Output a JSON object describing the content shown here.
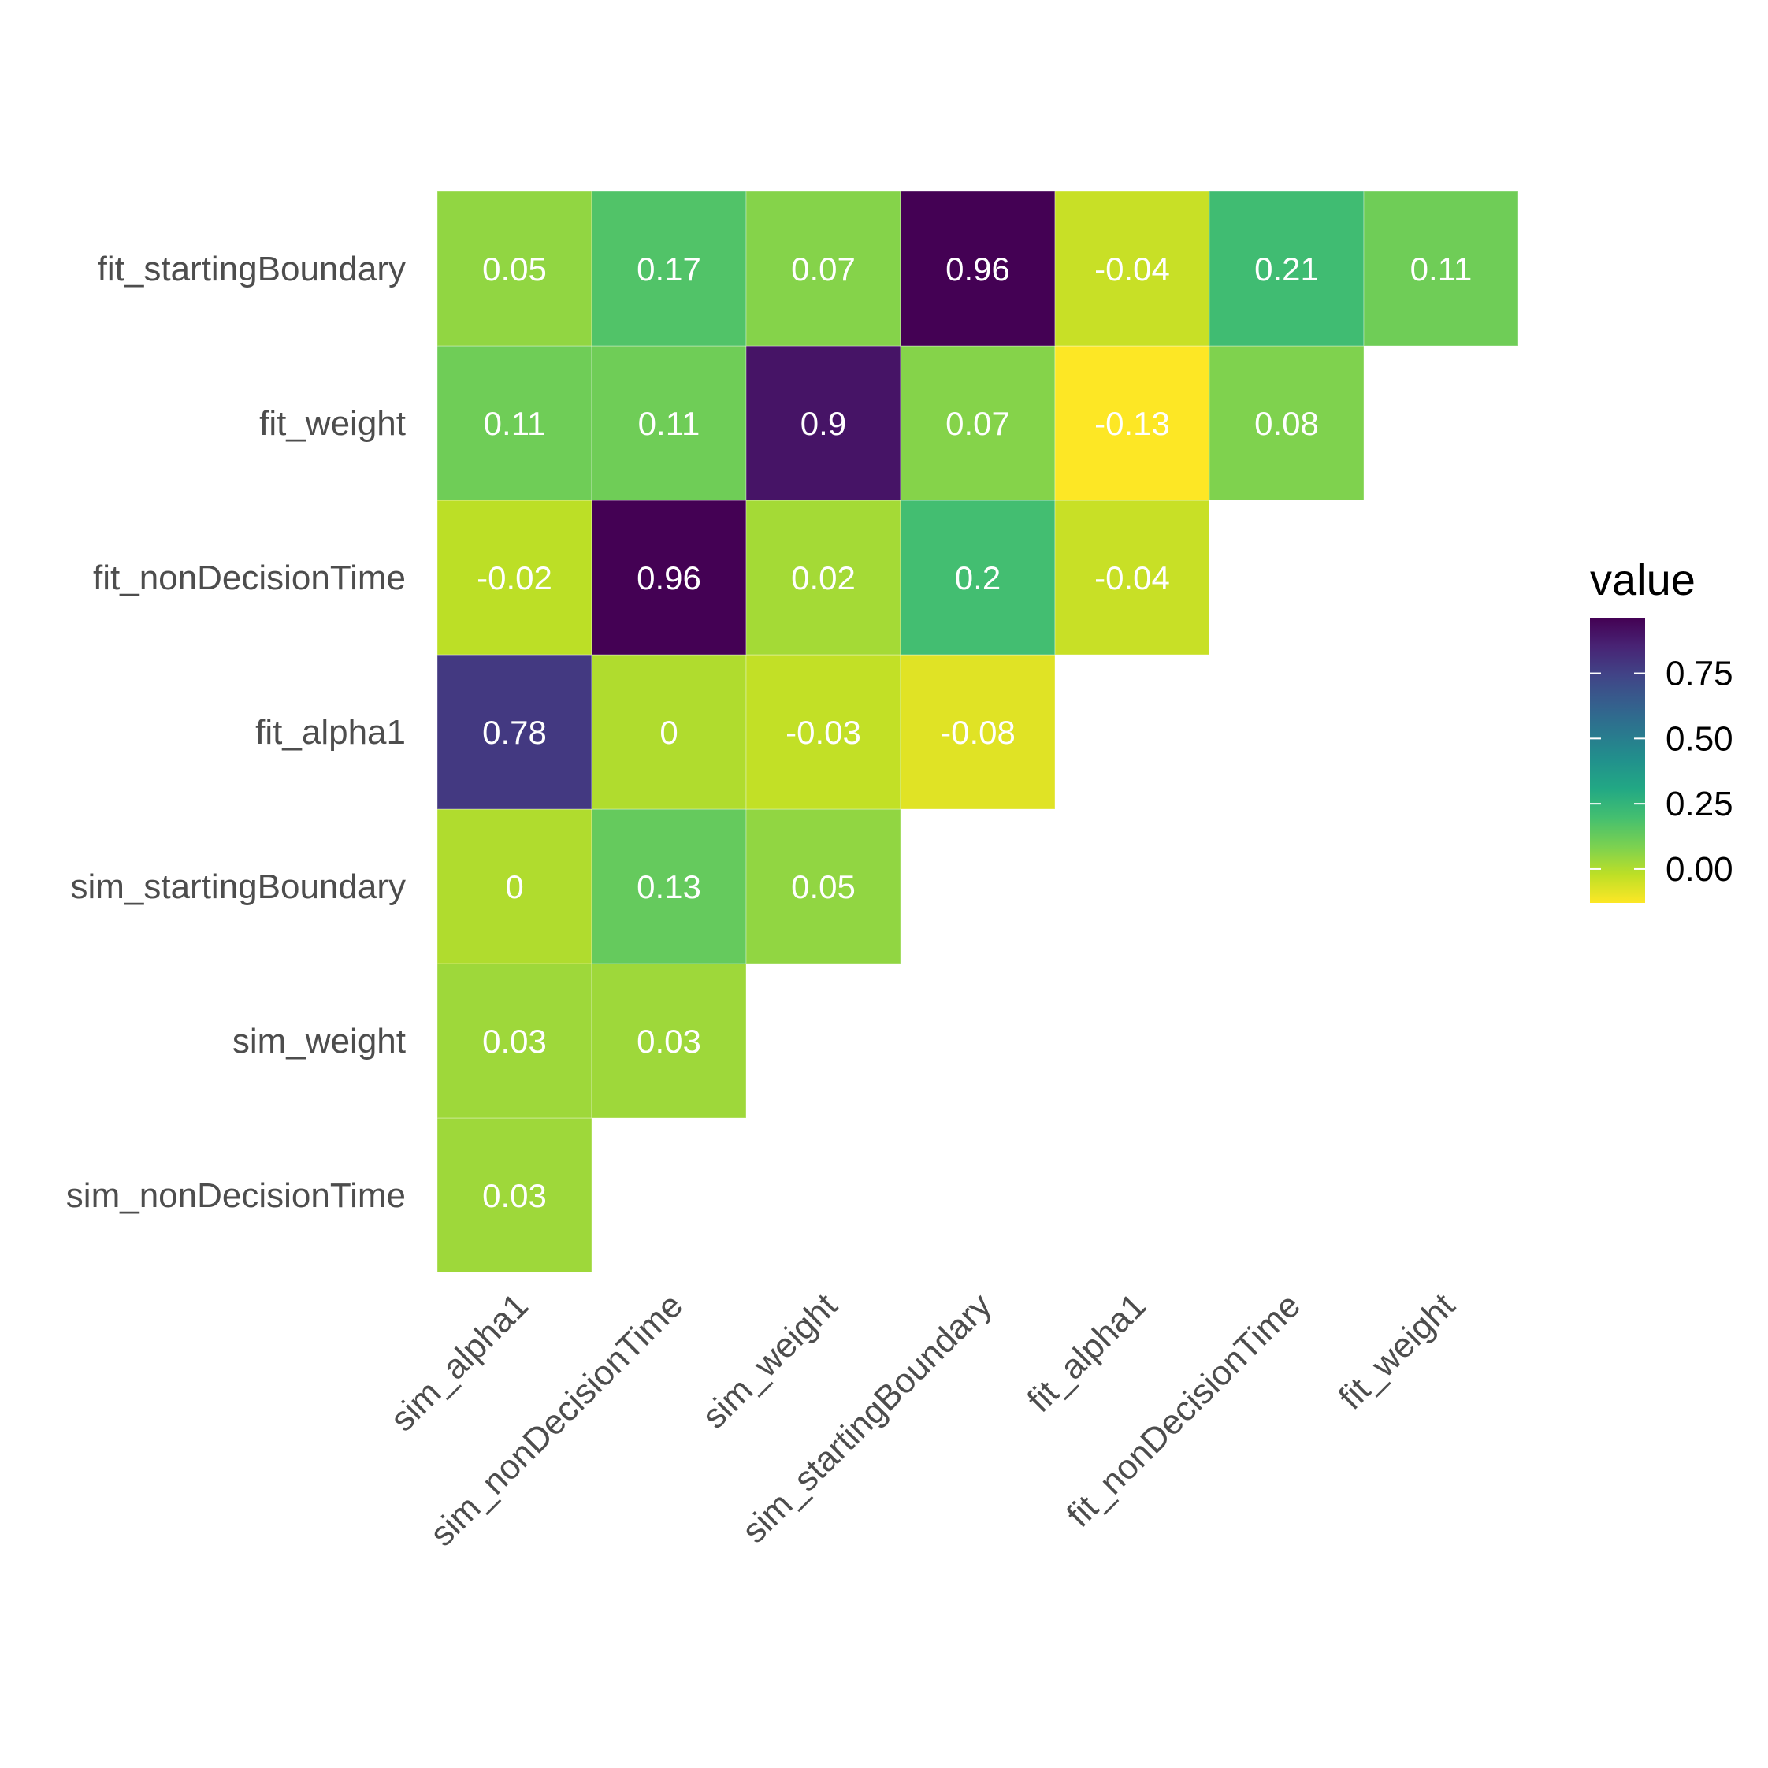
{
  "chart_data": {
    "type": "heatmap",
    "title": "",
    "xlabel": "",
    "ylabel": "",
    "x_categories": [
      "sim_alpha1",
      "sim_nonDecisionTime",
      "sim_weight",
      "sim_startingBoundary",
      "fit_alpha1",
      "fit_nonDecisionTime",
      "fit_weight"
    ],
    "y_categories": [
      "sim_nonDecisionTime",
      "sim_weight",
      "sim_startingBoundary",
      "fit_alpha1",
      "fit_nonDecisionTime",
      "fit_weight",
      "fit_startingBoundary"
    ],
    "cells": [
      {
        "x": "sim_alpha1",
        "y": "sim_nonDecisionTime",
        "value": 0.03,
        "label": "0.03"
      },
      {
        "x": "sim_alpha1",
        "y": "sim_weight",
        "value": 0.03,
        "label": "0.03"
      },
      {
        "x": "sim_nonDecisionTime",
        "y": "sim_weight",
        "value": 0.03,
        "label": "0.03"
      },
      {
        "x": "sim_alpha1",
        "y": "sim_startingBoundary",
        "value": 0,
        "label": "0"
      },
      {
        "x": "sim_nonDecisionTime",
        "y": "sim_startingBoundary",
        "value": 0.13,
        "label": "0.13"
      },
      {
        "x": "sim_weight",
        "y": "sim_startingBoundary",
        "value": 0.05,
        "label": "0.05"
      },
      {
        "x": "sim_alpha1",
        "y": "fit_alpha1",
        "value": 0.78,
        "label": "0.78"
      },
      {
        "x": "sim_nonDecisionTime",
        "y": "fit_alpha1",
        "value": 0,
        "label": "0"
      },
      {
        "x": "sim_weight",
        "y": "fit_alpha1",
        "value": -0.03,
        "label": "-0.03"
      },
      {
        "x": "sim_startingBoundary",
        "y": "fit_alpha1",
        "value": -0.08,
        "label": "-0.08"
      },
      {
        "x": "sim_alpha1",
        "y": "fit_nonDecisionTime",
        "value": -0.02,
        "label": "-0.02"
      },
      {
        "x": "sim_nonDecisionTime",
        "y": "fit_nonDecisionTime",
        "value": 0.96,
        "label": "0.96"
      },
      {
        "x": "sim_weight",
        "y": "fit_nonDecisionTime",
        "value": 0.02,
        "label": "0.02"
      },
      {
        "x": "sim_startingBoundary",
        "y": "fit_nonDecisionTime",
        "value": 0.2,
        "label": "0.2"
      },
      {
        "x": "fit_alpha1",
        "y": "fit_nonDecisionTime",
        "value": -0.04,
        "label": "-0.04"
      },
      {
        "x": "sim_alpha1",
        "y": "fit_weight",
        "value": 0.11,
        "label": "0.11"
      },
      {
        "x": "sim_nonDecisionTime",
        "y": "fit_weight",
        "value": 0.11,
        "label": "0.11"
      },
      {
        "x": "sim_weight",
        "y": "fit_weight",
        "value": 0.9,
        "label": "0.9"
      },
      {
        "x": "sim_startingBoundary",
        "y": "fit_weight",
        "value": 0.07,
        "label": "0.07"
      },
      {
        "x": "fit_alpha1",
        "y": "fit_weight",
        "value": -0.13,
        "label": "-0.13"
      },
      {
        "x": "fit_nonDecisionTime",
        "y": "fit_weight",
        "value": 0.08,
        "label": "0.08"
      },
      {
        "x": "sim_alpha1",
        "y": "fit_startingBoundary",
        "value": 0.05,
        "label": "0.05"
      },
      {
        "x": "sim_nonDecisionTime",
        "y": "fit_startingBoundary",
        "value": 0.17,
        "label": "0.17"
      },
      {
        "x": "sim_weight",
        "y": "fit_startingBoundary",
        "value": 0.07,
        "label": "0.07"
      },
      {
        "x": "sim_startingBoundary",
        "y": "fit_startingBoundary",
        "value": 0.96,
        "label": "0.96"
      },
      {
        "x": "fit_alpha1",
        "y": "fit_startingBoundary",
        "value": -0.04,
        "label": "-0.04"
      },
      {
        "x": "fit_nonDecisionTime",
        "y": "fit_startingBoundary",
        "value": 0.21,
        "label": "0.21"
      },
      {
        "x": "fit_weight",
        "y": "fit_startingBoundary",
        "value": 0.11,
        "label": "0.11"
      }
    ],
    "color_scale": {
      "name": "viridis",
      "reversed": true,
      "min": -0.13,
      "max": 0.96,
      "low_color": "#fde725",
      "high_color": "#440154"
    },
    "legend": {
      "title": "value",
      "position": "right",
      "ticks": [
        0.75,
        0.5,
        0.25,
        0.0
      ],
      "tick_labels": [
        "0.75",
        "0.50",
        "0.25",
        "0.00"
      ]
    },
    "grid": false
  }
}
